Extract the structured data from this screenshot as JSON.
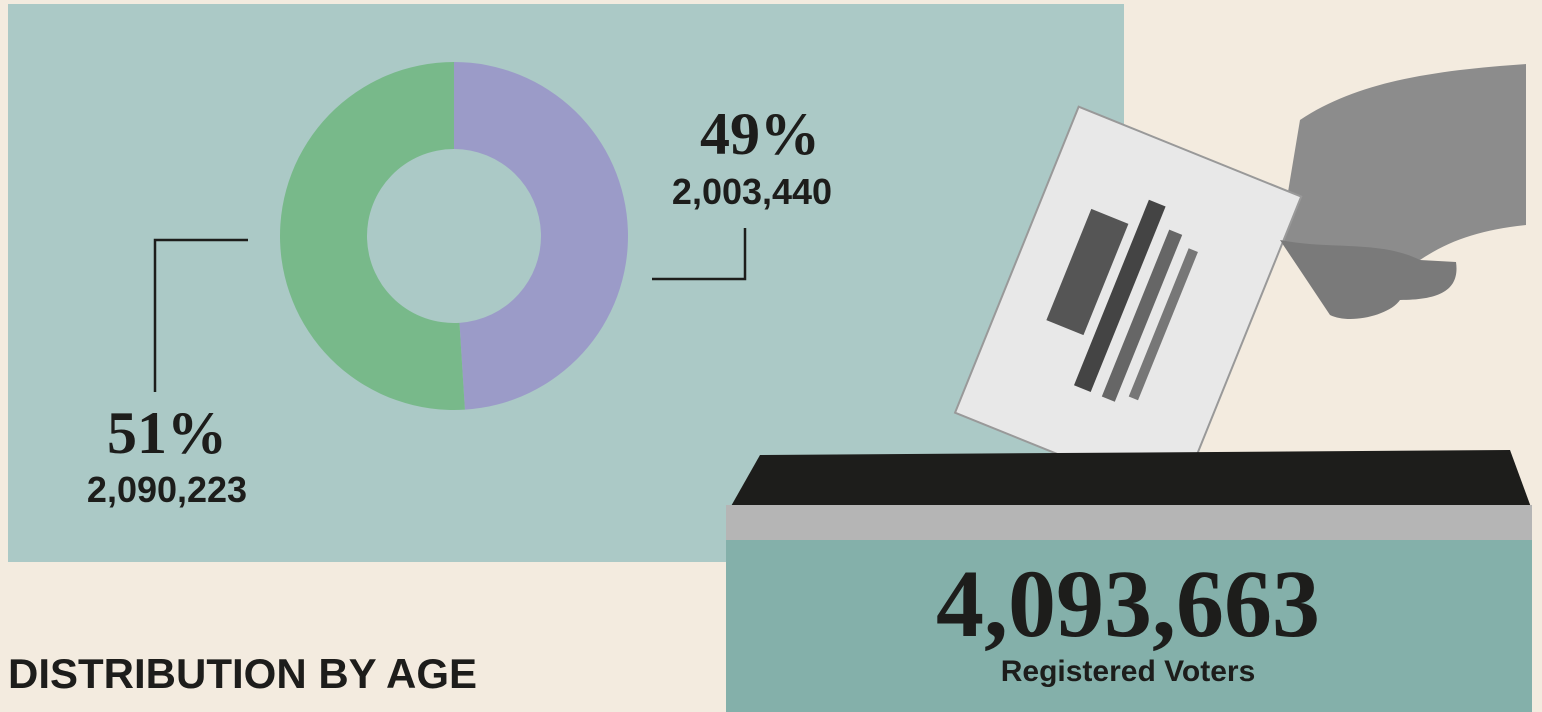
{
  "chart_data": {
    "type": "pie",
    "donut": true,
    "values": [
      49,
      51
    ],
    "value_labels": [
      "49%",
      "51%"
    ],
    "counts": [
      2003440,
      2090223
    ],
    "count_labels": [
      "2,003,440",
      "2,090,223"
    ],
    "colors": [
      "#9b9bc8",
      "#78b98a"
    ],
    "total": 4093663,
    "total_label": "4,093,663",
    "total_caption": "Registered Voters",
    "section_heading": "DISTRIBUTION BY AGE"
  }
}
